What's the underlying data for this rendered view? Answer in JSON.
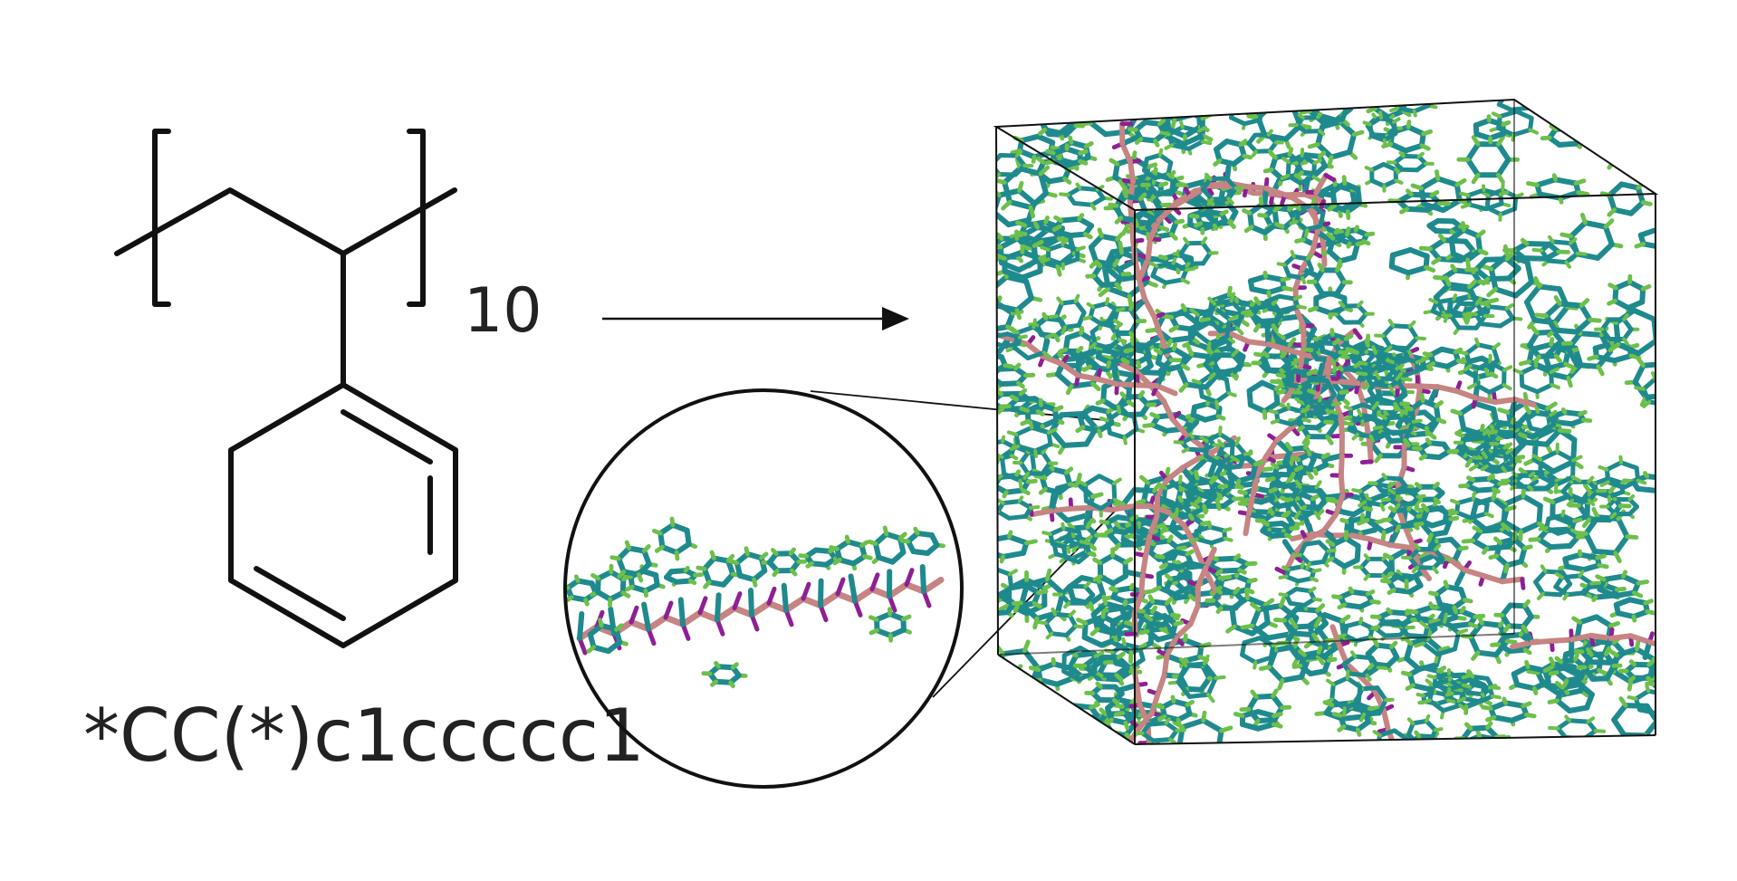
{
  "structure": {
    "repeat_count": "10",
    "smiles": "*CC(*)c1ccccc1"
  },
  "colors": {
    "ink": "#111111",
    "carbon_ring": "#1f8a8e",
    "backbone": "#c68482",
    "hydrogen": "#6cc04a",
    "backbone_hydrogen": "#8e1f94",
    "box_edge": "#111111"
  },
  "icons": {
    "arrow": "arrow-right-icon",
    "zoom": "magnifier-circle-icon"
  }
}
